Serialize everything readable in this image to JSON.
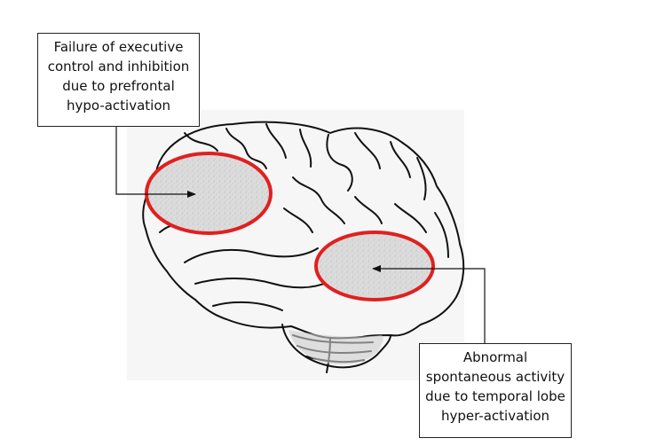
{
  "callouts": {
    "prefrontal": "Failure of executive\ncontrol and inhibition\ndue to prefrontal\nhypo-activation",
    "temporal": "Abnormal\nspontaneous activity\ndue to temporal lobe\nhyper-activation"
  },
  "colors": {
    "highlight": "#e02020",
    "outline": "#111111",
    "region_fill": "#d8d8d8",
    "background": "#f6f6f6"
  },
  "icons": [
    "brain-illustration"
  ]
}
